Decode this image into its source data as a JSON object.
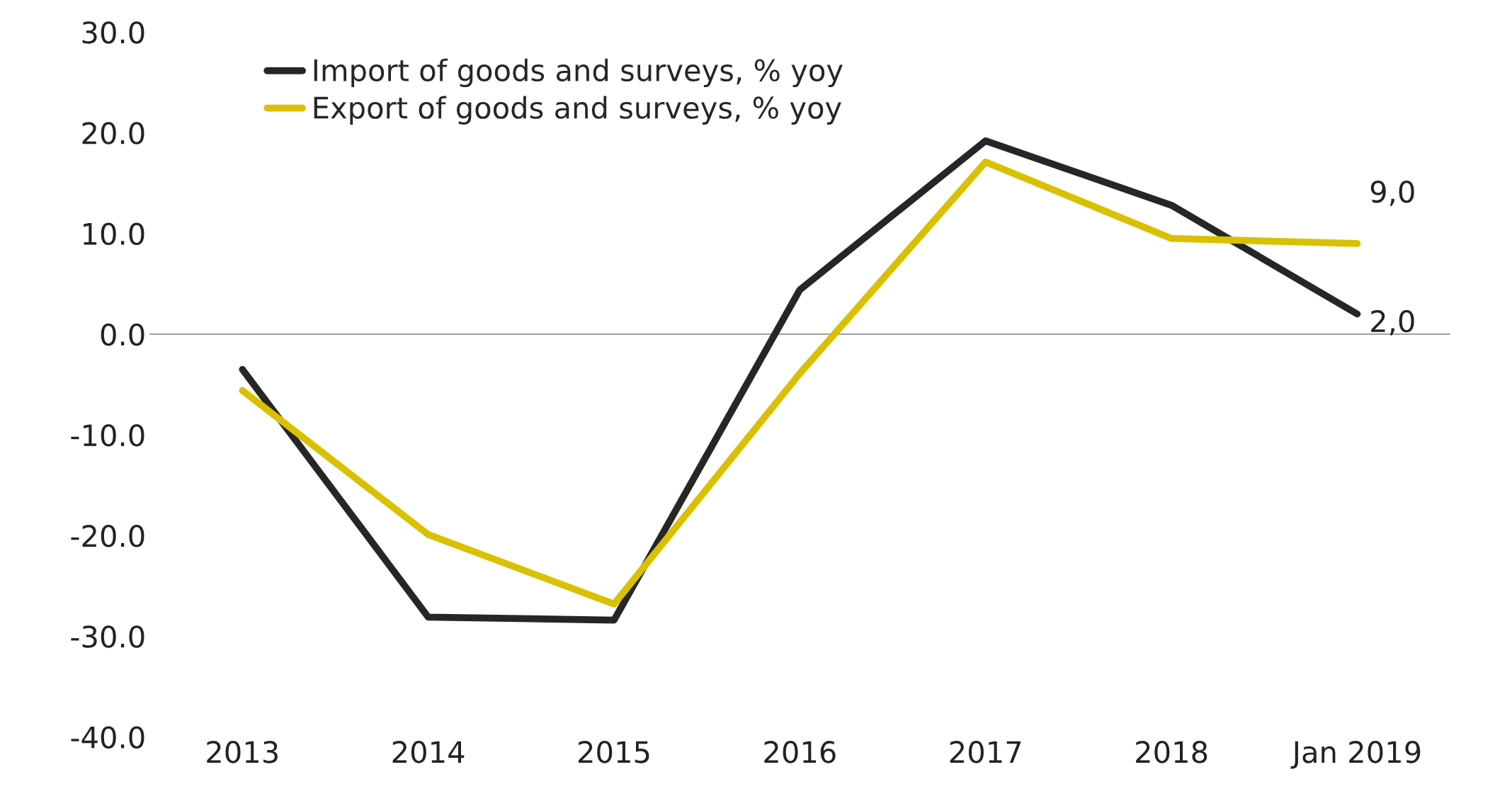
{
  "chart_data": {
    "type": "line",
    "categories": [
      "2013",
      "2014",
      "2015",
      "2016",
      "2017",
      "2018",
      "Jan 2019"
    ],
    "series": [
      {
        "name": "Import of goods and surveys, % yoy",
        "color": "#262626",
        "values": [
          -3.5,
          -28.1,
          -28.4,
          4.4,
          19.2,
          12.8,
          2.0
        ],
        "value_labels": [
          null,
          null,
          null,
          null,
          null,
          null,
          "2,0"
        ]
      },
      {
        "name": "Export of goods and surveys, % yoy",
        "color": "#d9c000",
        "values": [
          -5.6,
          -19.9,
          -26.8,
          -3.9,
          17.1,
          9.5,
          9.0
        ],
        "value_labels": [
          null,
          null,
          null,
          null,
          null,
          null,
          "9,0"
        ]
      }
    ],
    "ylim": [
      -40,
      30
    ],
    "yticks": [
      {
        "value": -40,
        "label": "-40.0"
      },
      {
        "value": -30,
        "label": "-30.0"
      },
      {
        "value": -20,
        "label": "-20.0"
      },
      {
        "value": -10,
        "label": "-10.0"
      },
      {
        "value": 0,
        "label": "0.0"
      },
      {
        "value": 10,
        "label": "10.0"
      },
      {
        "value": 20,
        "label": "20.0"
      },
      {
        "value": 30,
        "label": "30.0"
      }
    ],
    "ref_lines": [
      {
        "axis": "y",
        "value": 0,
        "color": "#808080"
      }
    ],
    "grid": false,
    "legend": "top left",
    "marker": "none",
    "line_style": "solid"
  }
}
